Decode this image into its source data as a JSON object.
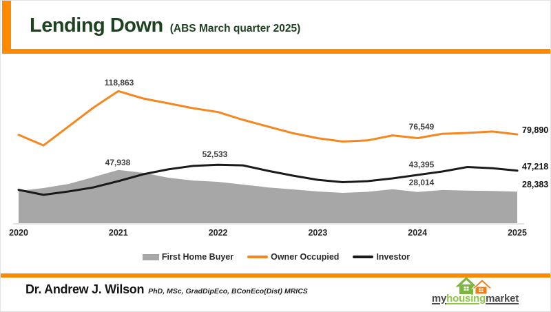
{
  "header": {
    "title": "Lending Down",
    "subtitle": "(ABS March quarter 2025)"
  },
  "colors": {
    "accent_orange": "#ff8a00",
    "line_orange": "#f6871f",
    "area_gray": "#a7a7a7",
    "line_black": "#1a1a1a",
    "title_green": "#1d4220",
    "axis_line": "#d9d9d9",
    "label_gray": "#3f3f3f",
    "logo_green": "#8dc63f",
    "logo_house_green": "#7db63f",
    "logo_house_orange": "#ef7c17",
    "logo_dark": "#4a4a4a"
  },
  "chart_data": {
    "type": "line",
    "title": "Lending Down (ABS March quarter 2025)",
    "x_unit": "quarterly",
    "grid": false,
    "legend_position": "bottom",
    "ylim": [
      0,
      148000
    ],
    "x_tick_labels": [
      "2020",
      "2021",
      "2022",
      "2023",
      "2024",
      "2025"
    ],
    "periods": [
      "2020 Q1",
      "2020 Q2",
      "2020 Q3",
      "2020 Q4",
      "2021 Q1",
      "2021 Q2",
      "2021 Q3",
      "2021 Q4",
      "2022 Q1",
      "2022 Q2",
      "2022 Q3",
      "2022 Q4",
      "2023 Q1",
      "2023 Q2",
      "2023 Q3",
      "2023 Q4",
      "2024 Q1",
      "2024 Q2",
      "2024 Q3",
      "2024 Q4",
      "2025 Q1"
    ],
    "series": [
      {
        "name": "First Home Buyer",
        "type": "area",
        "color": "#a7a7a7",
        "values": [
          29000,
          31600,
          35300,
          41500,
          47938,
          45300,
          40900,
          38400,
          37200,
          34700,
          32200,
          30400,
          28500,
          27300,
          28200,
          30500,
          28014,
          29800,
          29300,
          29000,
          28383
        ]
      },
      {
        "name": "Owner Occupied",
        "type": "line",
        "color": "#f6871f",
        "values": [
          79500,
          70000,
          87000,
          104000,
          118863,
          112200,
          107900,
          103500,
          100000,
          93000,
          87000,
          81000,
          76500,
          73500,
          74500,
          79000,
          76549,
          80500,
          81200,
          82500,
          79890
        ]
      },
      {
        "name": "Investor",
        "type": "line",
        "color": "#1a1a1a",
        "values": [
          30000,
          25500,
          28500,
          32200,
          37800,
          44000,
          48400,
          51500,
          52533,
          52000,
          47100,
          42800,
          39000,
          36900,
          37800,
          40300,
          43395,
          46500,
          50500,
          49500,
          47218
        ]
      }
    ],
    "labeled_points": {
      "owner_occupied_peak_2021": "118,863",
      "first_home_buyer_peak_2021": "47,938",
      "investor_peak_2022": "52,533",
      "owner_occupied_2024": "76,549",
      "investor_2024": "43,395",
      "first_home_buyer_2024": "28,014",
      "owner_occupied_2025": "79,890",
      "investor_2025": "47,218",
      "first_home_buyer_2025": "28,383"
    },
    "point_labels": [
      {
        "text": "118,863",
        "x": 172,
        "y": 112,
        "anchor": "center",
        "bold": false
      },
      {
        "text": "47,938",
        "x": 170,
        "y": 228,
        "anchor": "center",
        "bold": false
      },
      {
        "text": "52,533",
        "x": 311,
        "y": 216,
        "anchor": "center",
        "bold": false
      },
      {
        "text": "76,549",
        "x": 611,
        "y": 176,
        "anchor": "center",
        "bold": false
      },
      {
        "text": "43,395",
        "x": 611,
        "y": 231,
        "anchor": "center",
        "bold": false
      },
      {
        "text": "28,014",
        "x": 611,
        "y": 257,
        "anchor": "center",
        "bold": false
      },
      {
        "text": "79,890",
        "x": 757,
        "y": 181,
        "anchor": "left",
        "bold": true
      },
      {
        "text": "47,218",
        "x": 757,
        "y": 234,
        "anchor": "left",
        "bold": true
      },
      {
        "text": "28,383",
        "x": 757,
        "y": 260,
        "anchor": "left",
        "bold": true
      }
    ]
  },
  "legend": {
    "items": [
      {
        "label": "First Home Buyer",
        "swatch": "area",
        "color": "#a7a7a7"
      },
      {
        "label": "Owner Occupied",
        "swatch": "line",
        "color": "#f6871f"
      },
      {
        "label": "Investor",
        "swatch": "line",
        "color": "#1a1a1a"
      }
    ]
  },
  "footer": {
    "author": "Dr. Andrew J. Wilson",
    "credentials": "PhD, MSc, GradDipEco, BConEco(Dist) MRICS",
    "logo": {
      "part1": "my",
      "part2": "housing",
      "part3": "market"
    }
  }
}
